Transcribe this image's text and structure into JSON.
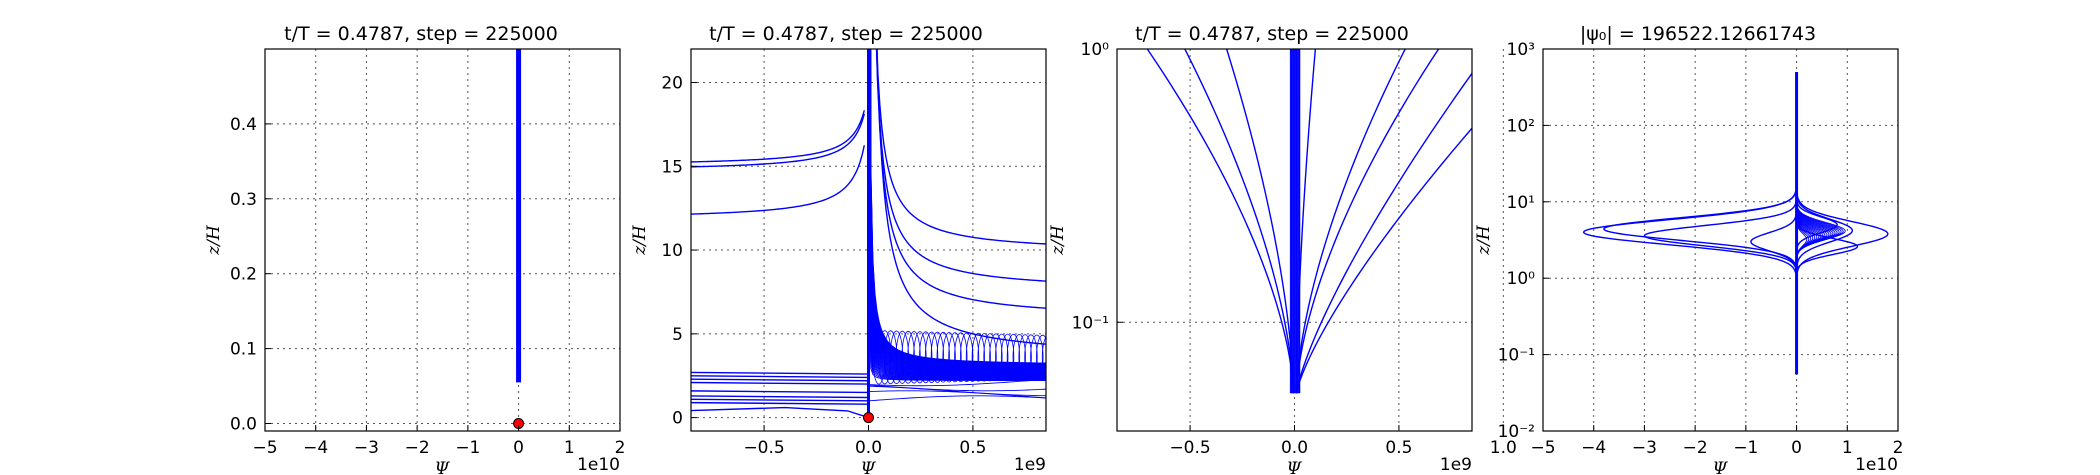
{
  "chart_data": [
    {
      "type": "line",
      "title": "t/T = 0.4787, step = 225000",
      "xlabel": "Ψ",
      "ylabel": "z/H",
      "x_offset_label": "1e10",
      "xlim": [
        -5,
        2
      ],
      "ylim": [
        -0.01,
        0.5
      ],
      "xticks": [
        "−5",
        "−4",
        "−3",
        "−2",
        "−1",
        "0",
        "1",
        "2"
      ],
      "yticks": [
        "0.0",
        "0.1",
        "0.2",
        "0.3",
        "0.4"
      ],
      "grid": true,
      "series": [
        {
          "x": [
            0,
            0
          ],
          "y": [
            0.055,
            0.5
          ]
        }
      ],
      "marker": {
        "x": 0,
        "y": 0
      }
    },
    {
      "type": "line",
      "title": "t/T = 0.4787, step = 225000",
      "xlabel": "Ψ",
      "ylabel": "z/H",
      "x_offset_label": "1e9",
      "xlim": [
        -0.85,
        0.85
      ],
      "ylim": [
        -0.8,
        22
      ],
      "xticks": [
        "−0.5",
        "0.0",
        "0.5"
      ],
      "yticks": [
        "0",
        "5",
        "10",
        "15",
        "20"
      ],
      "grid": true,
      "marker": {
        "x": 0,
        "y": 0
      }
    },
    {
      "type": "line",
      "title": "t/T = 0.4787, step = 225000",
      "xlabel": "Ψ",
      "ylabel": "z/H",
      "x_offset_label": "1e9",
      "xlim": [
        -0.85,
        0.85
      ],
      "ylim": [
        0.04,
        1
      ],
      "yscale": "log",
      "xticks": [
        "−0.5",
        "0.0",
        "0.5",
        "1.0"
      ],
      "yticks": [
        "10⁻¹",
        "10⁰"
      ],
      "grid": true
    },
    {
      "type": "line",
      "title": "|ψ₀| = 196522.12661743",
      "xlabel": "Ψ",
      "ylabel": "z/H",
      "x_offset_label": "1e10",
      "xlim": [
        -5,
        2
      ],
      "ylim": [
        0.01,
        1000
      ],
      "yscale": "log",
      "xticks": [
        "−5",
        "−4",
        "−3",
        "−2",
        "−1",
        "0",
        "1",
        "2"
      ],
      "yticks": [
        "10⁻²",
        "10⁻¹",
        "10⁰",
        "10¹",
        "10²",
        "10³"
      ],
      "grid": true
    }
  ]
}
